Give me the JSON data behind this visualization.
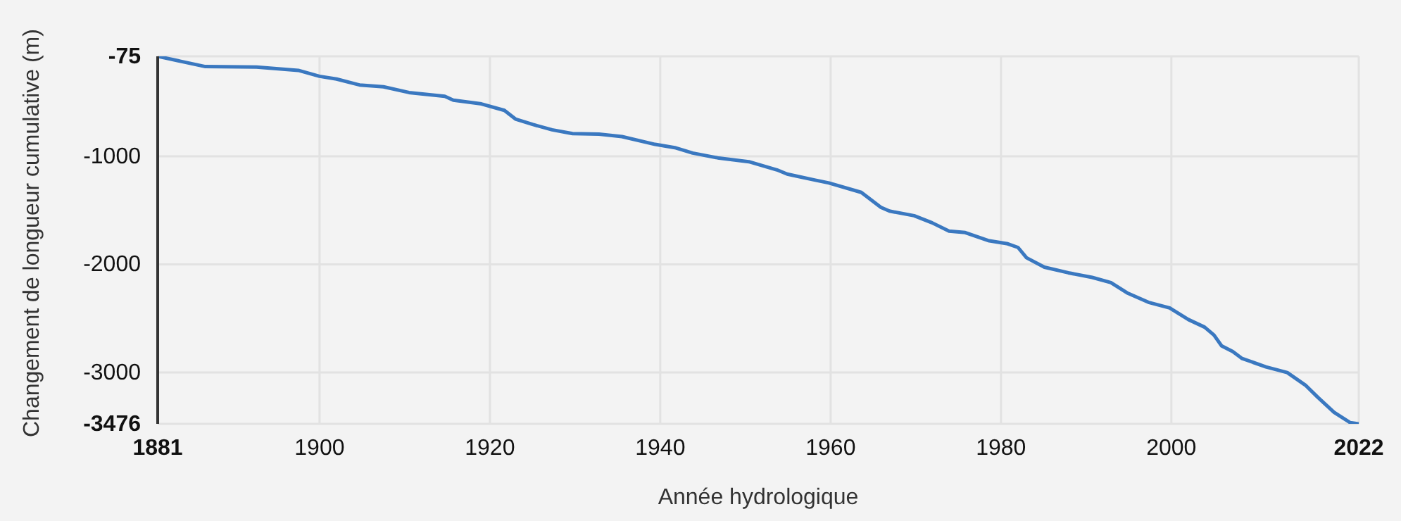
{
  "chart_data": {
    "type": "line",
    "xlabel": "Année hydrologique",
    "ylabel": "Changement de longueur cumulative (m)",
    "x": [
      1881,
      1886.6,
      1892.6,
      1897.5,
      1900,
      1902,
      1904.7,
      1907.5,
      1910.5,
      1914.7,
      1915.7,
      1919,
      1921.7,
      1923,
      1925,
      1927.3,
      1929.7,
      1932.8,
      1935.5,
      1939.4,
      1941.7,
      1943.8,
      1946.9,
      1950.4,
      1953.7,
      1954.9,
      1958.2,
      1959.8,
      1963.6,
      1965.9,
      1966.9,
      1969.8,
      1971.9,
      1973.9,
      1975.8,
      1978.5,
      1980.8,
      1982,
      1983,
      1985.1,
      1987.9,
      1990.7,
      1992.9,
      1994.8,
      1997.3,
      1999.8,
      2002,
      2003.9,
      2005,
      2005.9,
      2007.2,
      2008.3,
      2011.1,
      2013.6,
      2015.8,
      2017.2,
      2019.1,
      2021,
      2022
    ],
    "series": [
      {
        "color": "#3a78c0",
        "values": [
          -75,
          -170,
          -175,
          -205,
          -260,
          -285,
          -340,
          -357,
          -410,
          -445,
          -480,
          -515,
          -575,
          -655,
          -705,
          -755,
          -790,
          -795,
          -818,
          -890,
          -920,
          -970,
          -1017,
          -1050,
          -1126,
          -1165,
          -1221,
          -1247,
          -1334,
          -1472,
          -1507,
          -1550,
          -1615,
          -1693,
          -1706,
          -1780,
          -1810,
          -1844,
          -1939,
          -2026,
          -2078,
          -2121,
          -2169,
          -2264,
          -2351,
          -2403,
          -2511,
          -2581,
          -2654,
          -2754,
          -2806,
          -2871,
          -2949,
          -3001,
          -3122,
          -3231,
          -3369,
          -3465,
          -3476
        ]
      }
    ],
    "xlim": [
      1881,
      2022
    ],
    "xticks": [
      1881,
      1900,
      1920,
      1940,
      1960,
      1980,
      2000,
      2022
    ],
    "ylim": [
      -3476,
      -75
    ],
    "yticks": [
      -75,
      -1000,
      -2000,
      -3000,
      -3476
    ],
    "grid": true,
    "legend": false,
    "marker": "none",
    "line_style": "solid"
  }
}
